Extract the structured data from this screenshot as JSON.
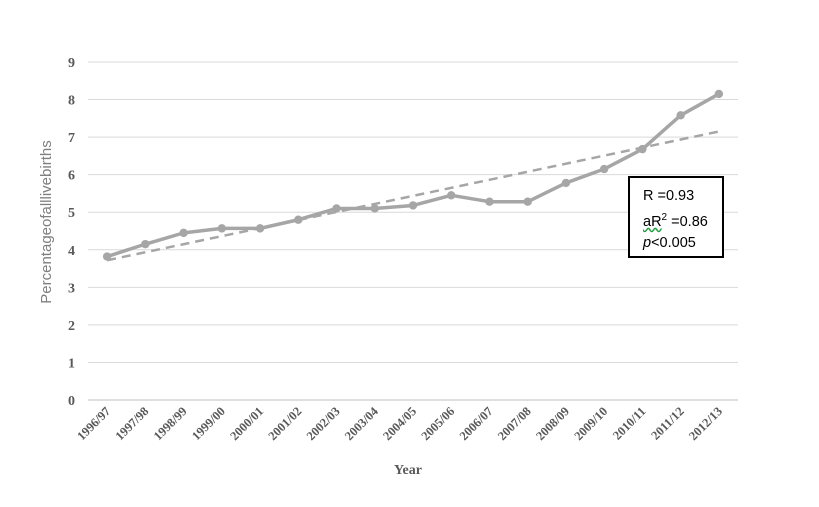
{
  "chart_data": {
    "type": "line",
    "title": "",
    "xlabel": "Year",
    "ylabel": "Percentageofalllivebirths",
    "ylim": [
      0,
      9
    ],
    "yticks": [
      0,
      1,
      2,
      3,
      4,
      5,
      6,
      7,
      8,
      9
    ],
    "grid": true,
    "categories": [
      "1996/97",
      "1997/98",
      "1998/99",
      "1999/00",
      "2000/01",
      "2001/02",
      "2002/03",
      "2003/04",
      "2004/05",
      "2005/06",
      "2006/07",
      "2007/08",
      "2008/09",
      "2009/10",
      "2010/11",
      "2011/12",
      "2012/13"
    ],
    "series": [
      {
        "values": [
          3.82,
          4.15,
          4.45,
          4.57,
          4.57,
          4.8,
          5.1,
          5.1,
          5.18,
          5.45,
          5.28,
          5.28,
          5.78,
          6.15,
          6.68,
          7.58,
          8.15
        ],
        "color": "#a6a6a6"
      }
    ],
    "trendline": {
      "style": "dashed",
      "color": "#a6a6a6",
      "start": 3.72,
      "end": 7.15
    },
    "annotations": {
      "r": "R =0.93",
      "ar2_prefix": "aR",
      "ar2_sup": "2",
      "ar2_suffix": " =0.86",
      "p_italic": "p",
      "p_rest": "<0.005"
    }
  }
}
